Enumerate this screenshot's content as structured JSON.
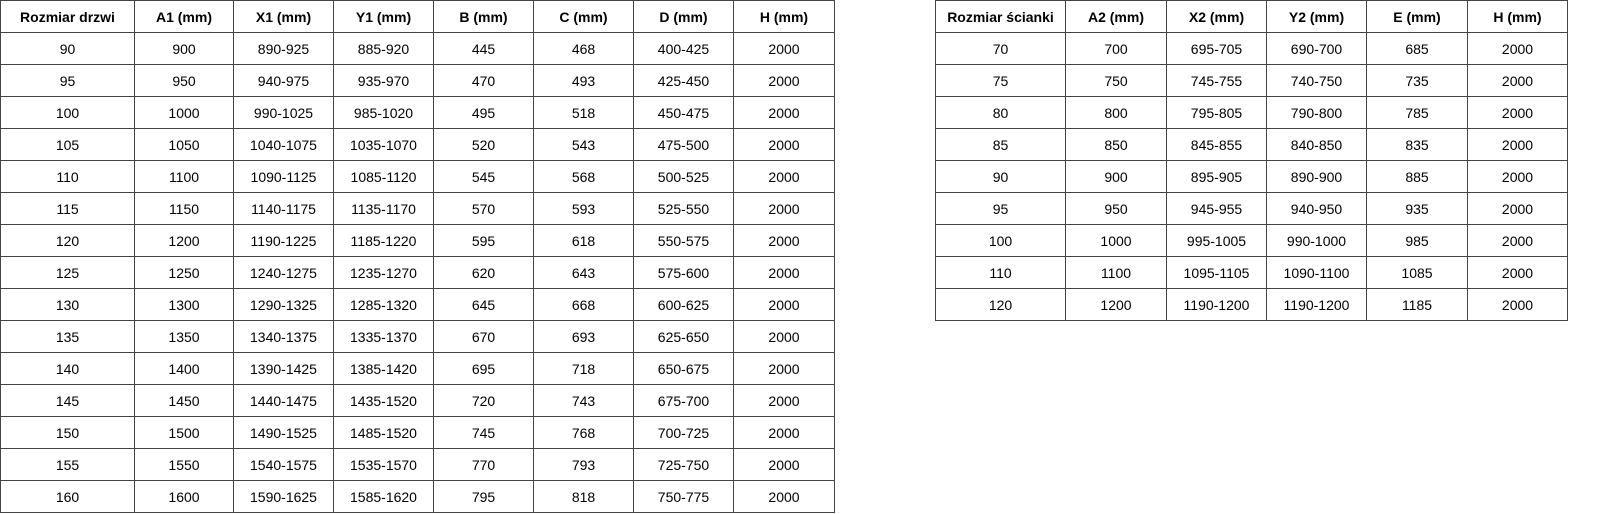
{
  "door_table": {
    "headers": [
      "Rozmiar drzwi",
      "A1 (mm)",
      "X1 (mm)",
      "Y1 (mm)",
      "B (mm)",
      "C (mm)",
      "D (mm)",
      "H (mm)"
    ],
    "rows": [
      [
        "90",
        "900",
        "890-925",
        "885-920",
        "445",
        "468",
        "400-425",
        "2000"
      ],
      [
        "95",
        "950",
        "940-975",
        "935-970",
        "470",
        "493",
        "425-450",
        "2000"
      ],
      [
        "100",
        "1000",
        "990-1025",
        "985-1020",
        "495",
        "518",
        "450-475",
        "2000"
      ],
      [
        "105",
        "1050",
        "1040-1075",
        "1035-1070",
        "520",
        "543",
        "475-500",
        "2000"
      ],
      [
        "110",
        "1100",
        "1090-1125",
        "1085-1120",
        "545",
        "568",
        "500-525",
        "2000"
      ],
      [
        "115",
        "1150",
        "1140-1175",
        "1135-1170",
        "570",
        "593",
        "525-550",
        "2000"
      ],
      [
        "120",
        "1200",
        "1190-1225",
        "1185-1220",
        "595",
        "618",
        "550-575",
        "2000"
      ],
      [
        "125",
        "1250",
        "1240-1275",
        "1235-1270",
        "620",
        "643",
        "575-600",
        "2000"
      ],
      [
        "130",
        "1300",
        "1290-1325",
        "1285-1320",
        "645",
        "668",
        "600-625",
        "2000"
      ],
      [
        "135",
        "1350",
        "1340-1375",
        "1335-1370",
        "670",
        "693",
        "625-650",
        "2000"
      ],
      [
        "140",
        "1400",
        "1390-1425",
        "1385-1420",
        "695",
        "718",
        "650-675",
        "2000"
      ],
      [
        "145",
        "1450",
        "1440-1475",
        "1435-1520",
        "720",
        "743",
        "675-700",
        "2000"
      ],
      [
        "150",
        "1500",
        "1490-1525",
        "1485-1520",
        "745",
        "768",
        "700-725",
        "2000"
      ],
      [
        "155",
        "1550",
        "1540-1575",
        "1535-1570",
        "770",
        "793",
        "725-750",
        "2000"
      ],
      [
        "160",
        "1600",
        "1590-1625",
        "1585-1620",
        "795",
        "818",
        "750-775",
        "2000"
      ]
    ]
  },
  "wall_table": {
    "headers": [
      "Rozmiar ścianki",
      "A2 (mm)",
      "X2 (mm)",
      "Y2 (mm)",
      "E (mm)",
      "H (mm)"
    ],
    "rows": [
      [
        "70",
        "700",
        "695-705",
        "690-700",
        "685",
        "2000"
      ],
      [
        "75",
        "750",
        "745-755",
        "740-750",
        "735",
        "2000"
      ],
      [
        "80",
        "800",
        "795-805",
        "790-800",
        "785",
        "2000"
      ],
      [
        "85",
        "850",
        "845-855",
        "840-850",
        "835",
        "2000"
      ],
      [
        "90",
        "900",
        "895-905",
        "890-900",
        "885",
        "2000"
      ],
      [
        "95",
        "950",
        "945-955",
        "940-950",
        "935",
        "2000"
      ],
      [
        "100",
        "1000",
        "995-1005",
        "990-1000",
        "985",
        "2000"
      ],
      [
        "110",
        "1100",
        "1095-1105",
        "1090-1100",
        "1085",
        "2000"
      ],
      [
        "120",
        "1200",
        "1190-1200",
        "1190-1200",
        "1185",
        "2000"
      ]
    ]
  }
}
